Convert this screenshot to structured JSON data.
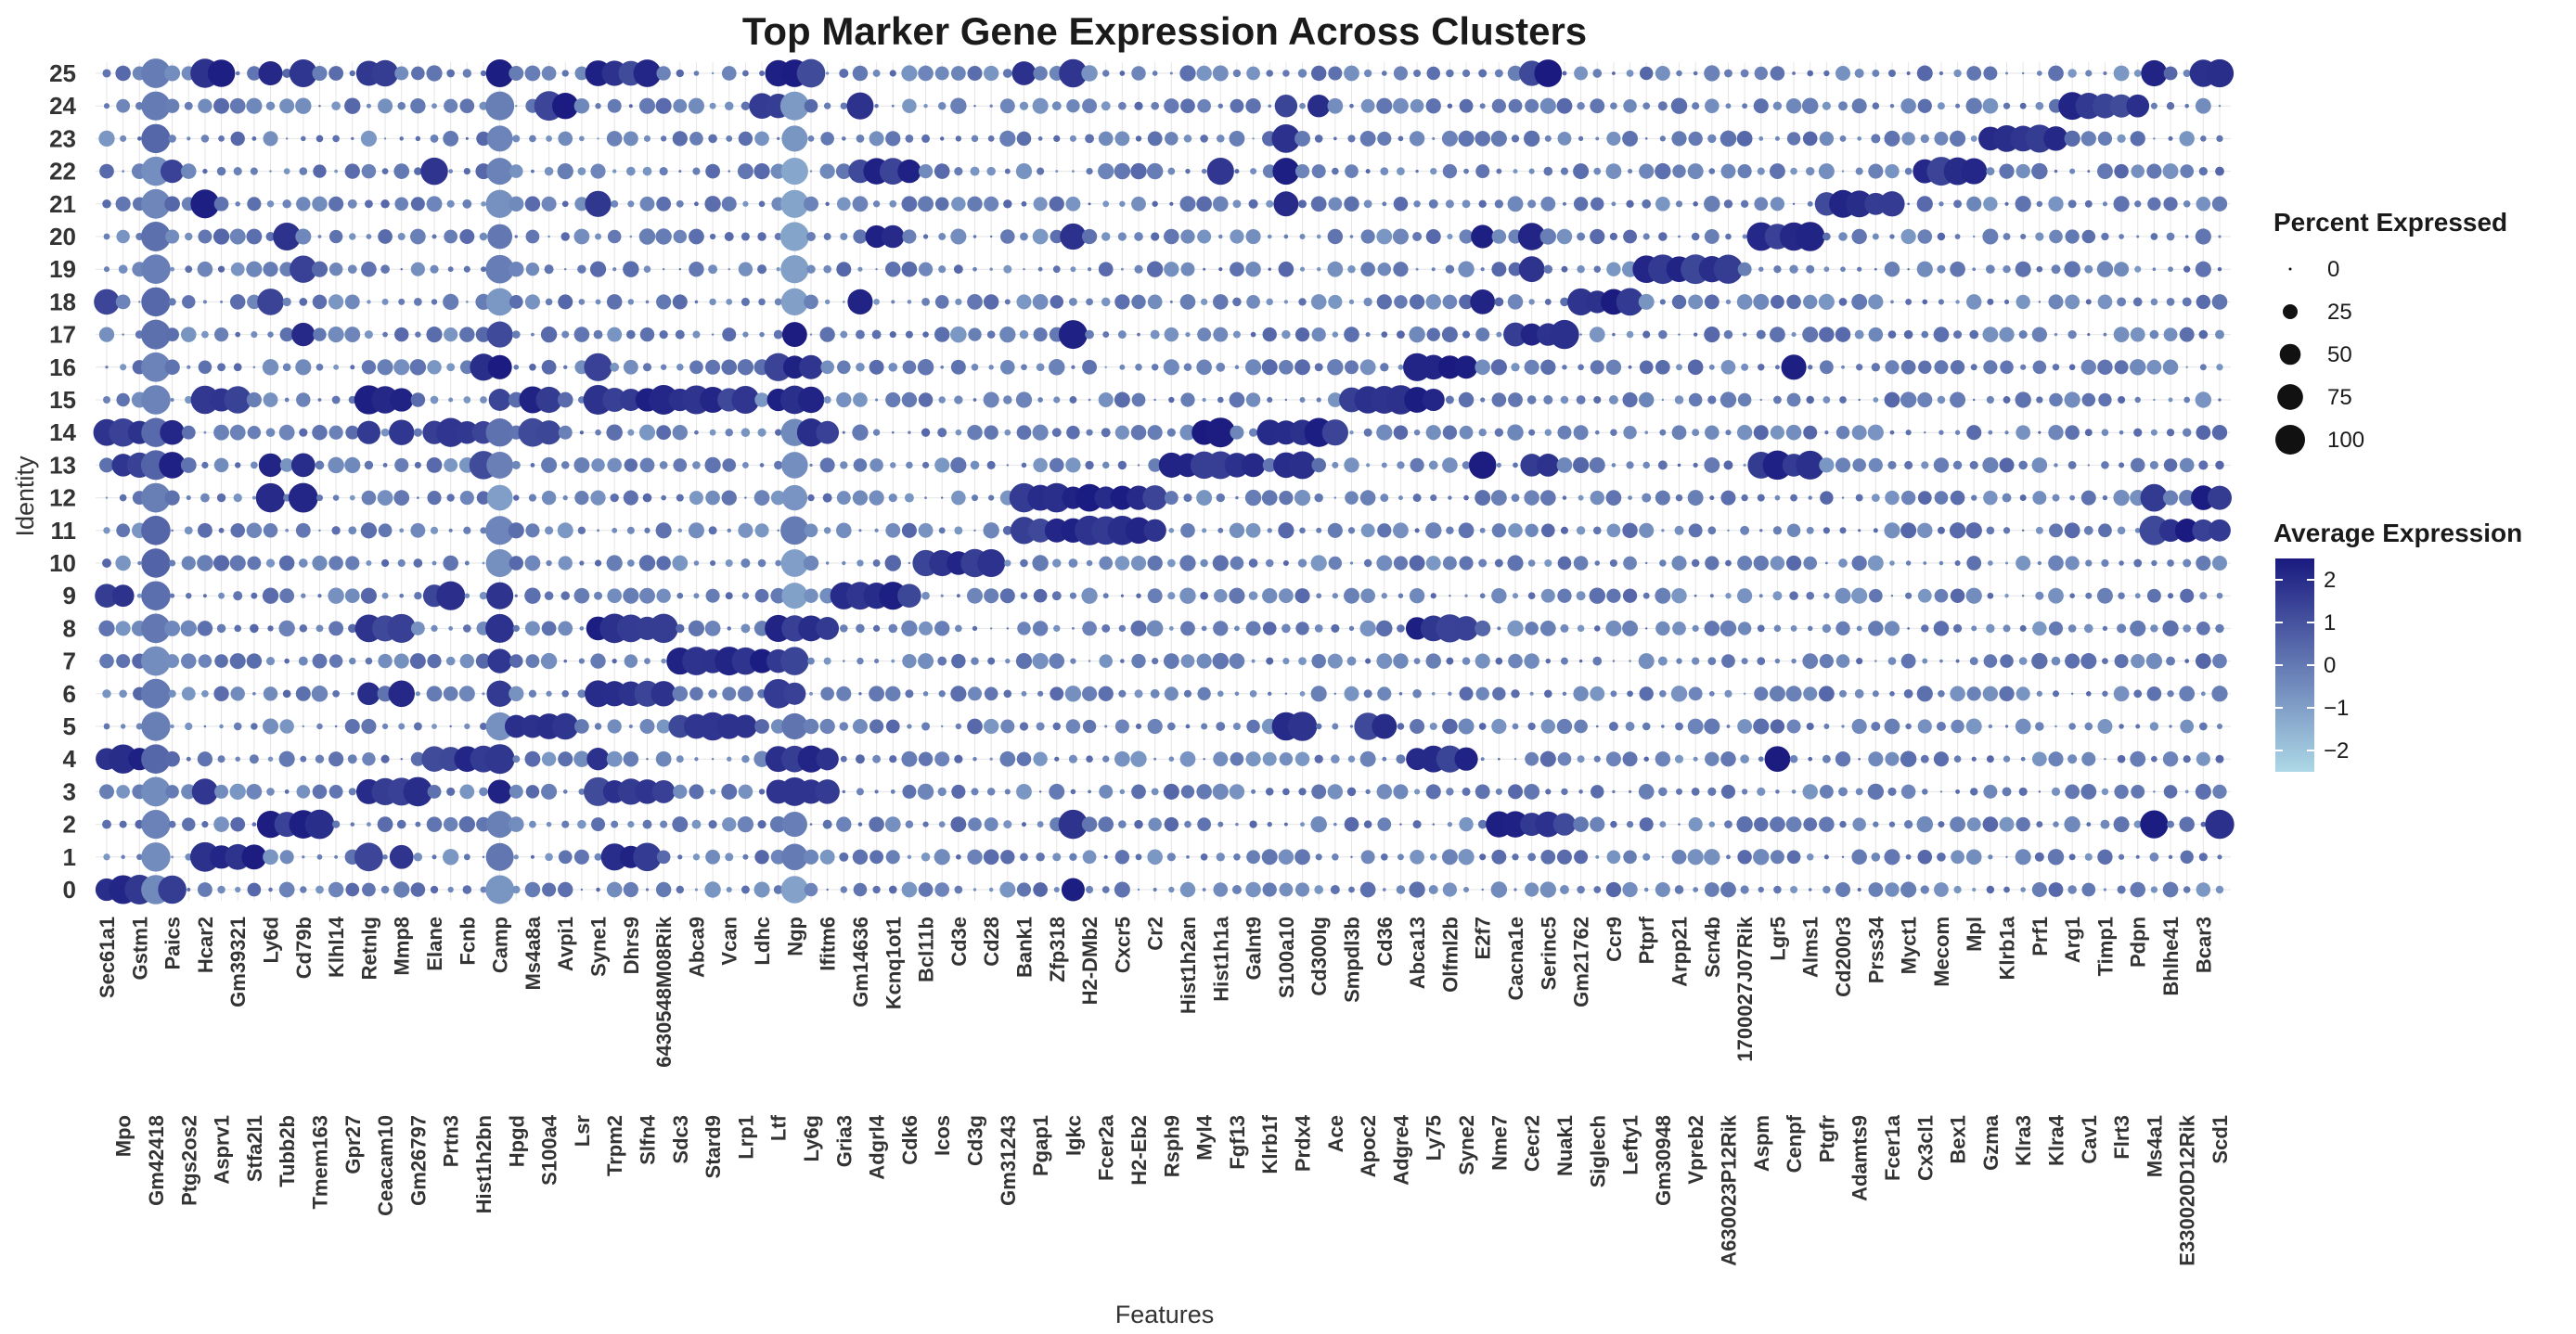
{
  "chart_data": {
    "type": "dotplot",
    "title": "Top Marker Gene Expression Across Clusters",
    "xlabel": "Features",
    "ylabel": "Identity",
    "clusters": [
      "0",
      "1",
      "2",
      "3",
      "4",
      "5",
      "6",
      "7",
      "8",
      "9",
      "10",
      "11",
      "12",
      "13",
      "14",
      "15",
      "16",
      "17",
      "18",
      "19",
      "20",
      "21",
      "22",
      "23",
      "24",
      "25"
    ],
    "features": [
      "Sec61a1",
      "Mpo",
      "Gstm1",
      "Gm42418",
      "Paics",
      "Ptgs2os2",
      "Hcar2",
      "Asprv1",
      "Gm39321",
      "Stfa2l1",
      "Ly6d",
      "Tubb2b",
      "Cd79b",
      "Tmem163",
      "Klhl14",
      "Gpr27",
      "Retnlg",
      "Ceacam10",
      "Mmp8",
      "Gm26797",
      "Elane",
      "Prtn3",
      "Fcnb",
      "Hist1h2bn",
      "Camp",
      "Hpgd",
      "Ms4a8a",
      "S100a4",
      "Avpi1",
      "Lsr",
      "Syne1",
      "Trpm2",
      "Dhrs9",
      "Slfn4",
      "6430548M08Rik",
      "Sdc3",
      "Abca9",
      "Stard9",
      "Vcan",
      "Lrp1",
      "Ldhc",
      "Ltf",
      "Ngp",
      "Ly6g",
      "Ifitm6",
      "Gria3",
      "Gm14636",
      "Adgrl4",
      "Kcnq1ot1",
      "Cdk6",
      "Bcl11b",
      "Icos",
      "Cd3e",
      "Cd3g",
      "Cd28",
      "Gm31243",
      "Bank1",
      "Pgap1",
      "Zfp318",
      "Igkc",
      "H2-DMb2",
      "Fcer2a",
      "Cxcr5",
      "H2-Eb2",
      "Cr2",
      "Rsph9",
      "Hist1h2an",
      "Myl4",
      "Hist1h1a",
      "Fgf13",
      "Galnt9",
      "Klrb1f",
      "S100a10",
      "Prdx4",
      "Cd300lg",
      "Ace",
      "Smpdl3b",
      "Apoc2",
      "Cd36",
      "Adgre4",
      "Abca13",
      "Ly75",
      "Olfml2b",
      "Syne2",
      "E2f7",
      "Nme7",
      "Cacna1e",
      "Cecr2",
      "Serinc5",
      "Nuak1",
      "Gm21762",
      "Siglech",
      "Ccr9",
      "Lefty1",
      "Ptprf",
      "Gm30948",
      "Arpp21",
      "Vpreb2",
      "Scn4b",
      "A630023P12Rik",
      "1700027J07Rik",
      "Aspm",
      "Lgr5",
      "Cenpf",
      "Alms1",
      "Ptgfr",
      "Cd200r3",
      "Adamts9",
      "Prss34",
      "Fcer1a",
      "Myct1",
      "Cx3cl1",
      "Mecom",
      "Bex1",
      "Mpl",
      "Gzma",
      "Klrb1a",
      "Klra3",
      "Prf1",
      "Klra4",
      "Arg1",
      "Cav1",
      "Timp1",
      "Flrt3",
      "Pdpn",
      "Ms4a1",
      "Bhlhe41",
      "E330020D12Rik",
      "Bcar3",
      "Scd1"
    ],
    "cluster_markers": {
      "0": [
        "Sec61a1",
        "Mpo",
        "Gstm1",
        "Gm42418",
        "Paics",
        "Igkc"
      ],
      "1": [
        "Hcar2",
        "Asprv1",
        "Gm39321",
        "Stfa2l1",
        "Retnlg",
        "Mmp8",
        "Trpm2",
        "Dhrs9",
        "Slfn4"
      ],
      "2": [
        "Ly6d",
        "Tubb2b",
        "Cd79b",
        "Tmem163",
        "Igkc",
        "Nme7",
        "Cacna1e",
        "Cecr2",
        "Serinc5",
        "Nuak1",
        "Ms4a1",
        "Scd1"
      ],
      "3": [
        "Hcar2",
        "Retnlg",
        "Ceacam10",
        "Mmp8",
        "Gm26797",
        "Camp",
        "Syne1",
        "Trpm2",
        "Dhrs9",
        "Slfn4",
        "6430548M08Rik",
        "Ltf",
        "Ngp",
        "Ly6g",
        "Ifitm6"
      ],
      "4": [
        "Sec61a1",
        "Mpo",
        "Gstm1",
        "Elane",
        "Prtn3",
        "Fcnb",
        "Hist1h2bn",
        "Camp",
        "Syne1",
        "Ltf",
        "Ngp",
        "Ly6g",
        "Ifitm6",
        "Abca13",
        "Ly75",
        "Olfml2b",
        "Syne2",
        "Lgr5"
      ],
      "5": [
        "Hpgd",
        "Ms4a8a",
        "S100a4",
        "Avpi1",
        "Sdc3",
        "Abca9",
        "Stard9",
        "Vcan",
        "Lrp1",
        "S100a10",
        "Prdx4",
        "Apoc2",
        "Cd36"
      ],
      "6": [
        "Retnlg",
        "Mmp8",
        "Camp",
        "Syne1",
        "Trpm2",
        "Dhrs9",
        "Slfn4",
        "6430548M08Rik",
        "Ltf",
        "Ngp"
      ],
      "7": [
        "Camp",
        "Sdc3",
        "Abca9",
        "Stard9",
        "Vcan",
        "Lrp1",
        "Ldhc",
        "Ltf",
        "Ngp"
      ],
      "8": [
        "Retnlg",
        "Ceacam10",
        "Mmp8",
        "Camp",
        "Syne1",
        "Trpm2",
        "Dhrs9",
        "Slfn4",
        "6430548M08Rik",
        "Ltf",
        "Ngp",
        "Ly6g",
        "Ifitm6",
        "Abca13",
        "Ly75",
        "Olfml2b",
        "Syne2"
      ],
      "9": [
        "Sec61a1",
        "Mpo",
        "Elane",
        "Prtn3",
        "Camp",
        "Gria3",
        "Gm14636",
        "Adgrl4",
        "Kcnq1ot1",
        "Cdk6"
      ],
      "10": [
        "Bcl11b",
        "Icos",
        "Cd3e",
        "Cd3g",
        "Cd28"
      ],
      "11": [
        "Bank1",
        "Pgap1",
        "Zfp318",
        "Igkc",
        "H2-DMb2",
        "Fcer2a",
        "Cxcr5",
        "H2-Eb2",
        "Cr2",
        "Ms4a1",
        "Bhlhe41",
        "E330020D12Rik",
        "Bcar3",
        "Scd1"
      ],
      "12": [
        "Ly6d",
        "Cd79b",
        "Bank1",
        "Pgap1",
        "Zfp318",
        "Igkc",
        "H2-DMb2",
        "Fcer2a",
        "Cxcr5",
        "H2-Eb2",
        "Cr2",
        "Ms4a1",
        "Bcar3",
        "Scd1"
      ],
      "13": [
        "Mpo",
        "Gstm1",
        "Gm42418",
        "Paics",
        "Ly6d",
        "Cd79b",
        "Hist1h2bn",
        "Rsph9",
        "Hist1h2an",
        "Myl4",
        "Hist1h1a",
        "Fgf13",
        "Galnt9",
        "S100a10",
        "Prdx4",
        "E2f7",
        "Cecr2",
        "Serinc5",
        "Aspm",
        "Lgr5",
        "Cenpf",
        "Alms1"
      ],
      "14": [
        "Sec61a1",
        "Mpo",
        "Gstm1",
        "Gm42418",
        "Paics",
        "Retnlg",
        "Mmp8",
        "Elane",
        "Prtn3",
        "Fcnb",
        "Hist1h2bn",
        "Ms4a8a",
        "S100a4",
        "Ly6g",
        "Ifitm6",
        "Myl4",
        "Hist1h1a",
        "Klrb1f",
        "S100a10",
        "Prdx4",
        "Cd300lg",
        "Ace"
      ],
      "15": [
        "Hcar2",
        "Asprv1",
        "Gm39321",
        "Retnlg",
        "Ceacam10",
        "Mmp8",
        "Camp",
        "Ms4a8a",
        "S100a4",
        "Syne1",
        "Trpm2",
        "Dhrs9",
        "Slfn4",
        "6430548M08Rik",
        "Sdc3",
        "Abca9",
        "Stard9",
        "Vcan",
        "Lrp1",
        "Ltf",
        "Ngp",
        "Ly6g",
        "Smpdl3b",
        "Apoc2",
        "Cd36",
        "Adgre4",
        "Abca13",
        "Ly75"
      ],
      "16": [
        "Hist1h2bn",
        "Camp",
        "Syne1",
        "Ltf",
        "Ngp",
        "Ly6g",
        "Abca13",
        "Ly75",
        "Olfml2b",
        "Syne2",
        "Cenpf"
      ],
      "17": [
        "Cd79b",
        "Camp",
        "Ngp",
        "Igkc",
        "Cacna1e",
        "Cecr2",
        "Serinc5",
        "Nuak1"
      ],
      "18": [
        "Sec61a1",
        "Ly6d",
        "Gm14636",
        "E2f7",
        "Gm21762",
        "Siglech",
        "Ccr9",
        "Lefty1"
      ],
      "19": [
        "Cd79b",
        "Cecr2",
        "Ptprf",
        "Gm30948",
        "Arpp21",
        "Vpreb2",
        "Scn4b",
        "A630023P12Rik"
      ],
      "20": [
        "Tubb2b",
        "Adgrl4",
        "Kcnq1ot1",
        "Igkc",
        "E2f7",
        "Cecr2",
        "Aspm",
        "Lgr5",
        "Cenpf",
        "Alms1"
      ],
      "21": [
        "Hcar2",
        "Syne1",
        "S100a10",
        "Ptgfr",
        "Cd200r3",
        "Adamts9",
        "Prss34",
        "Fcer1a"
      ],
      "22": [
        "Paics",
        "Elane",
        "Gm14636",
        "Adgrl4",
        "Kcnq1ot1",
        "Cdk6",
        "Hist1h1a",
        "S100a10",
        "Cx3cl1",
        "Mecom",
        "Bex1",
        "Mpl"
      ],
      "23": [
        "S100a10",
        "Gzma",
        "Klrb1a",
        "Klra3",
        "Prf1",
        "Klra4"
      ],
      "24": [
        "Gm42418",
        "S100a4",
        "Avpi1",
        "Ldhc",
        "Ltf",
        "Gm14636",
        "S100a10",
        "Cd300lg",
        "Arg1",
        "Cav1",
        "Timp1",
        "Flrt3",
        "Pdpn"
      ],
      "25": [
        "Hcar2",
        "Asprv1",
        "Ly6d",
        "Cd79b",
        "Retnlg",
        "Ceacam10",
        "Camp",
        "Syne1",
        "Trpm2",
        "Dhrs9",
        "Slfn4",
        "Ltf",
        "Ngp",
        "Ly6g",
        "Bank1",
        "Igkc",
        "Cecr2",
        "Serinc5",
        "Ms4a1",
        "Bcar3",
        "Scd1"
      ]
    },
    "size_legend": {
      "title": "Percent Expressed",
      "breaks": [
        0,
        25,
        50,
        75,
        100
      ]
    },
    "color_legend": {
      "title": "Average Expression",
      "breaks": [
        2,
        1,
        0,
        -1,
        -2
      ],
      "break_labels": [
        "2",
        "1",
        "0",
        "−1",
        "−2"
      ],
      "range": [
        -2.5,
        2.5
      ],
      "low_color": "#add8e6",
      "high_color": "#1a1a80"
    },
    "grid": true,
    "legend_position": "right"
  }
}
